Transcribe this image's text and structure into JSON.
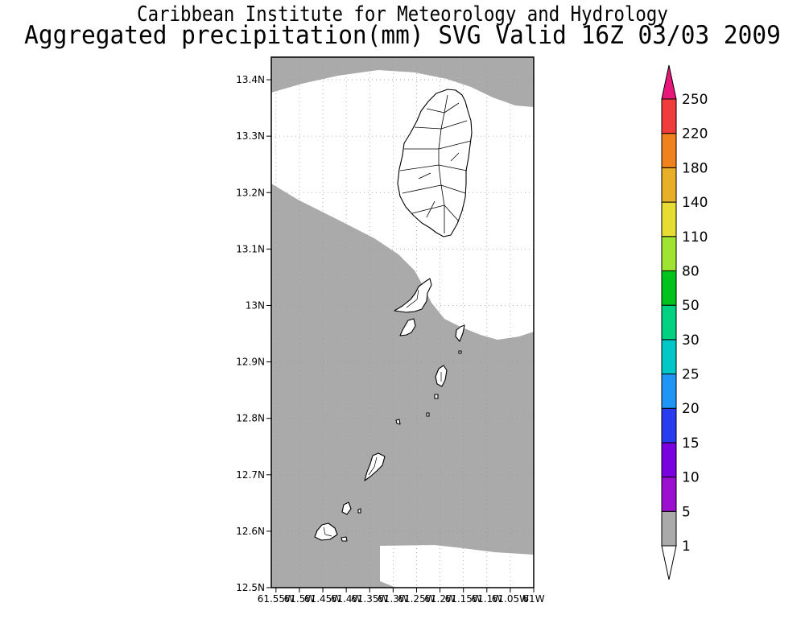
{
  "title": {
    "line1": "Caribbean Institute for Meteorology and Hydrology",
    "line2": "Aggregated precipitation(mm) SVG Valid 16Z 03/03 2009"
  },
  "map": {
    "lat_range": [
      12.5,
      13.44
    ],
    "lon_range": [
      -61.56,
      -61.0
    ],
    "lat_ticks": [
      {
        "value": 12.5,
        "label": "12.5N"
      },
      {
        "value": 12.6,
        "label": "12.6N"
      },
      {
        "value": 12.7,
        "label": "12.7N"
      },
      {
        "value": 12.8,
        "label": "12.8N"
      },
      {
        "value": 12.9,
        "label": "12.9N"
      },
      {
        "value": 13.0,
        "label": "13N"
      },
      {
        "value": 13.1,
        "label": "13.1N"
      },
      {
        "value": 13.2,
        "label": "13.2N"
      },
      {
        "value": 13.3,
        "label": "13.3N"
      },
      {
        "value": 13.4,
        "label": "13.4N"
      }
    ],
    "lon_ticks": [
      {
        "value": -61.55,
        "label": "61.55W"
      },
      {
        "value": -61.5,
        "label": "61.5W"
      },
      {
        "value": -61.45,
        "label": "61.45W"
      },
      {
        "value": -61.4,
        "label": "61.4W"
      },
      {
        "value": -61.35,
        "label": "61.35W"
      },
      {
        "value": -61.3,
        "label": "61.3W"
      },
      {
        "value": -61.25,
        "label": "61.25W"
      },
      {
        "value": -61.2,
        "label": "61.2W"
      },
      {
        "value": -61.15,
        "label": "61.15W"
      },
      {
        "value": -61.1,
        "label": "61.1W"
      },
      {
        "value": -61.05,
        "label": "61.05W"
      },
      {
        "value": -61.0,
        "label": "61W"
      }
    ],
    "grid": true,
    "field_color": "#aaaaaa",
    "coast_color": "#000000"
  },
  "legend": {
    "placement": "right",
    "bins": [
      {
        "label": "1",
        "color": "#ffffff"
      },
      {
        "label": "5",
        "color": "#aaaaaa"
      },
      {
        "label": "10",
        "color": "#9b0fd0"
      },
      {
        "label": "15",
        "color": "#7b00e0"
      },
      {
        "label": "20",
        "color": "#2a3cf0"
      },
      {
        "label": "25",
        "color": "#1f96f5"
      },
      {
        "label": "30",
        "color": "#00c8c8"
      },
      {
        "label": "50",
        "color": "#00d282"
      },
      {
        "label": "80",
        "color": "#00c41e"
      },
      {
        "label": "110",
        "color": "#9ee430"
      },
      {
        "label": "140",
        "color": "#e6dc32"
      },
      {
        "label": "180",
        "color": "#e8af28"
      },
      {
        "label": "220",
        "color": "#f0821e"
      },
      {
        "label": "250",
        "color": "#f03c3c"
      }
    ],
    "top_color": "#e8187a",
    "bottom_color": "#ffffff"
  }
}
